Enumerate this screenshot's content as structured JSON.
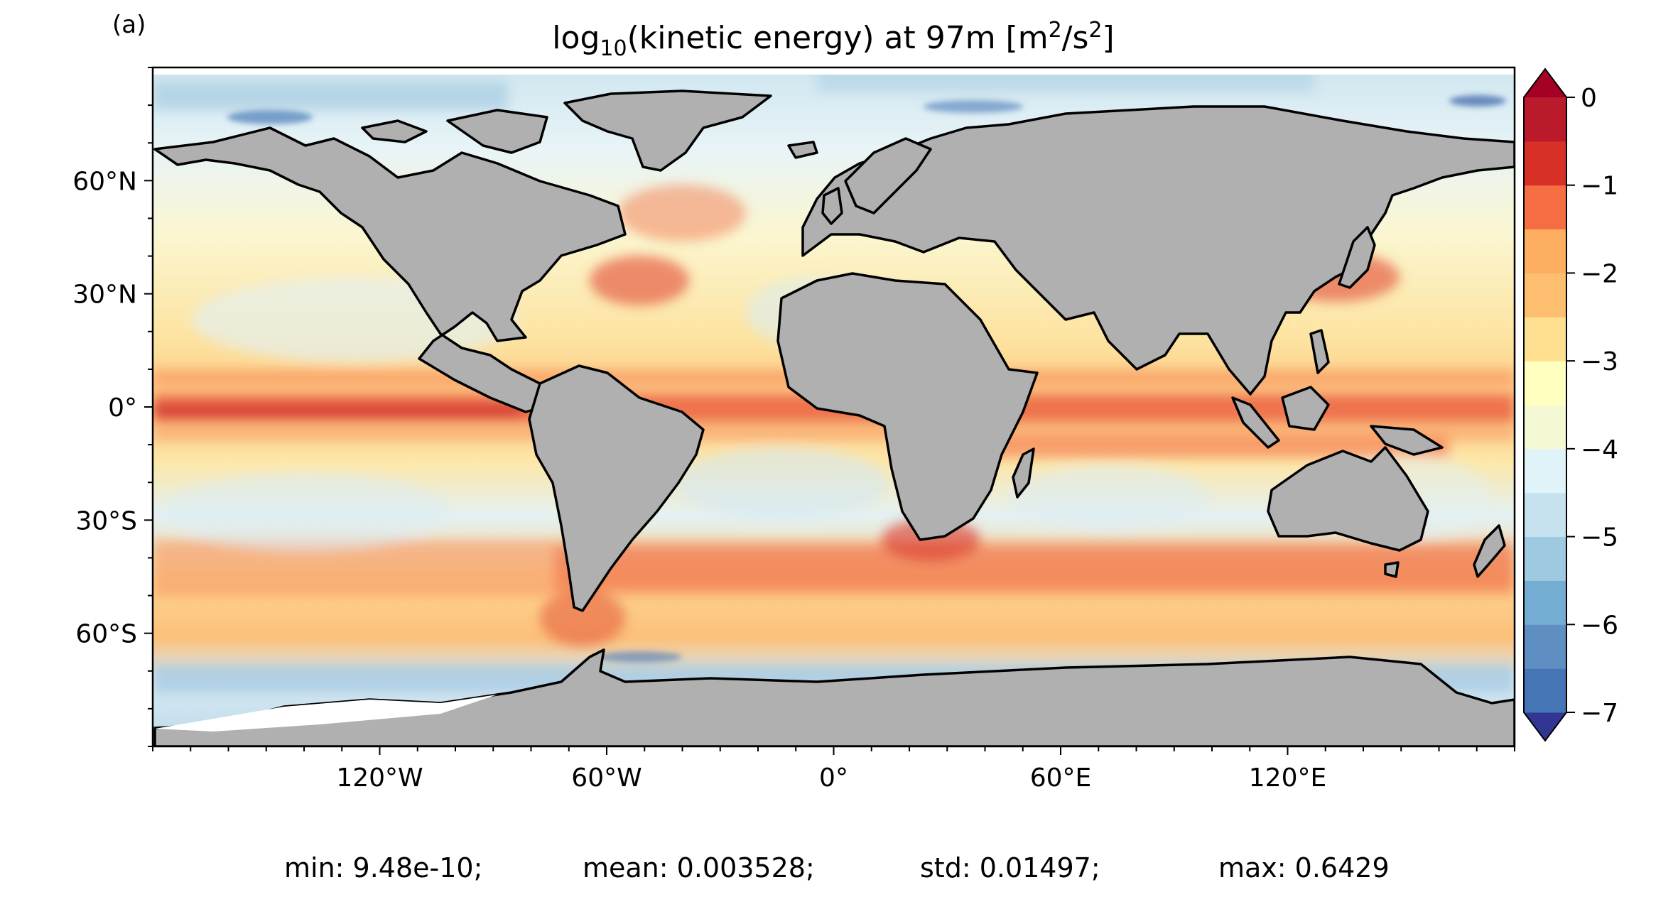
{
  "panel_label": "(a)",
  "title": {
    "prefix": "log",
    "sub": "10",
    "middle": "(kinetic energy) at 97m [m",
    "sup": "2",
    "slash": "/s",
    "sup2": "2",
    "suffix": "]"
  },
  "stats": {
    "min": "min: 9.48e-10;",
    "mean": "mean: 0.003528;",
    "std": "std: 0.01497;",
    "max": "max: 0.6429"
  },
  "chart_data": {
    "type": "heatmap",
    "projection": "equirectangular world map",
    "variable": "log10(kinetic energy)",
    "depth": "97m",
    "units": "m^2/s^2",
    "x_range": [
      -180,
      180
    ],
    "y_range": [
      -90,
      90
    ],
    "x_ticks": [
      -120,
      -60,
      0,
      60,
      120
    ],
    "x_tick_labels": [
      "120°W",
      "60°W",
      "0°",
      "60°E",
      "120°E"
    ],
    "y_ticks": [
      60,
      30,
      0,
      -30,
      -60
    ],
    "y_tick_labels": [
      "60°N",
      "30°N",
      "0°",
      "30°S",
      "60°S"
    ],
    "colorbar": {
      "levels": [
        -7,
        -6.5,
        -6,
        -5.5,
        -5,
        -4.5,
        -4,
        -3.5,
        -3,
        -2.5,
        -2,
        -1.5,
        -1,
        -0.5,
        0
      ],
      "tick_values": [
        0,
        -1,
        -2,
        -3,
        -4,
        -5,
        -6,
        -7
      ],
      "tick_labels": [
        "0",
        "−1",
        "−2",
        "−3",
        "−4",
        "−5",
        "−6",
        "−7"
      ],
      "extend": "both",
      "colors": [
        "#313695",
        "#4575b4",
        "#5f8fc2",
        "#74add1",
        "#9ecae1",
        "#c6e2ee",
        "#e0f3f8",
        "#f4f9d4",
        "#ffffbf",
        "#fee090",
        "#fdbe6f",
        "#fdae61",
        "#f46d43",
        "#d73027",
        "#bb1a2a",
        "#a50026"
      ]
    },
    "land_color": "#b0b0b0",
    "coastline_color": "#000000"
  }
}
